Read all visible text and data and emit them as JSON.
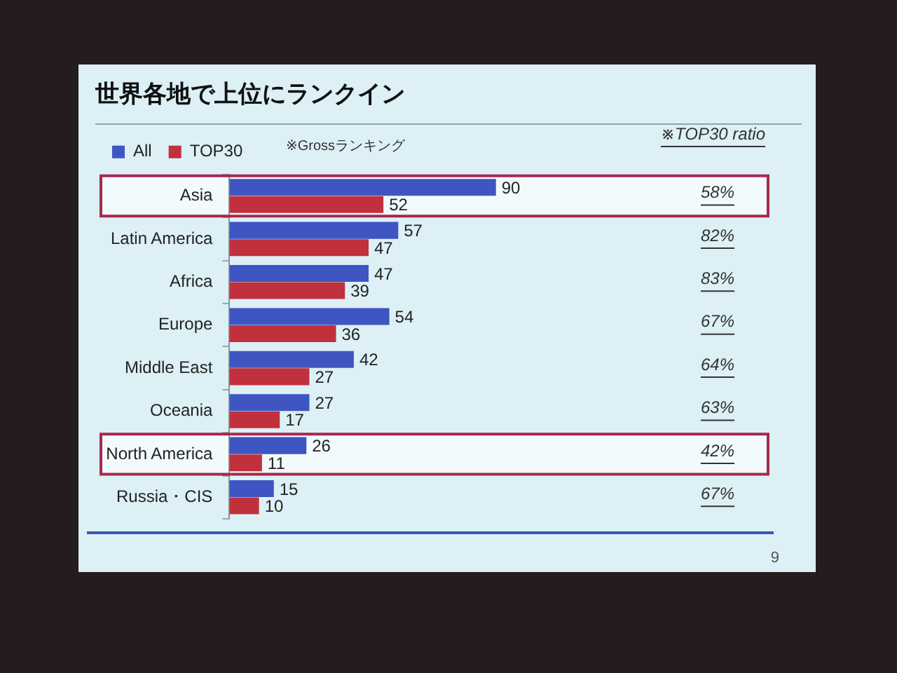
{
  "chart_data": {
    "type": "bar",
    "orientation": "horizontal",
    "title": "世界各地で上位にランクイン",
    "categories": [
      "Asia",
      "Latin America",
      "Africa",
      "Europe",
      "Middle East",
      "Oceania",
      "North America",
      "Russia・CIS"
    ],
    "series": [
      {
        "name": "All",
        "color": "#3f55c2",
        "values": [
          90,
          57,
          47,
          54,
          42,
          27,
          26,
          15
        ]
      },
      {
        "name": "TOP30",
        "color": "#c1303d",
        "values": [
          52,
          47,
          39,
          36,
          27,
          17,
          11,
          10
        ]
      }
    ],
    "data_labels": true,
    "legend": "top left",
    "tick_labels": "y",
    "bands": [
      {
        "axis": "y",
        "from": "Asia",
        "to": "Asia"
      },
      {
        "axis": "y",
        "from": "North America",
        "to": "North America"
      }
    ],
    "annotations": [
      "※Grossランキング",
      "※TOP30 ratio",
      "9",
      "58%",
      "82%",
      "83%",
      "67%",
      "64%",
      "63%",
      "42%",
      "67%"
    ]
  }
}
